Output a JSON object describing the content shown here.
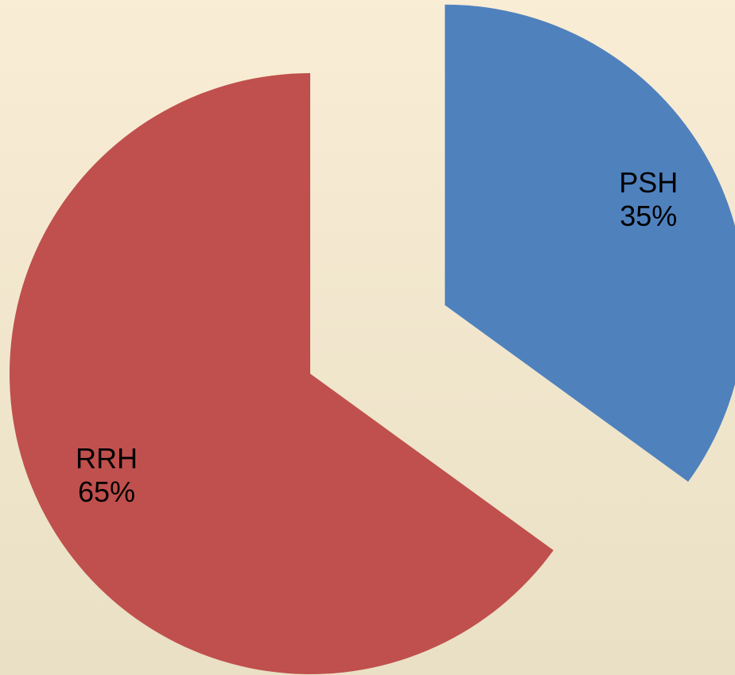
{
  "chart_data": {
    "type": "pie",
    "categories": [
      "PSH",
      "RRH"
    ],
    "values": [
      35,
      65
    ],
    "value_labels": [
      "35%",
      "65%"
    ],
    "colors": [
      "#4f81bd",
      "#c0504d"
    ]
  }
}
